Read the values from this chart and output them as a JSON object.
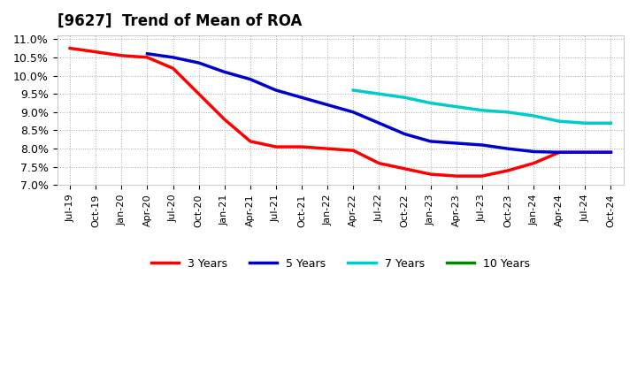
{
  "title": "[9627]  Trend of Mean of ROA",
  "background_color": "#ffffff",
  "plot_bg_color": "#ffffff",
  "grid_color": "#aaaaaa",
  "ylim": [
    0.07,
    0.111
  ],
  "yticks": [
    0.07,
    0.075,
    0.08,
    0.085,
    0.09,
    0.095,
    0.1,
    0.105,
    0.11
  ],
  "ytick_labels": [
    "7.0%",
    "7.5%",
    "8.0%",
    "8.5%",
    "9.0%",
    "9.5%",
    "10.0%",
    "10.5%",
    "11.0%"
  ],
  "xtick_labels": [
    "Jul-19",
    "Oct-19",
    "Jan-20",
    "Apr-20",
    "Jul-20",
    "Oct-20",
    "Jan-21",
    "Apr-21",
    "Jul-21",
    "Oct-21",
    "Jan-22",
    "Apr-22",
    "Jul-22",
    "Oct-22",
    "Jan-23",
    "Apr-23",
    "Jul-23",
    "Oct-23",
    "Jan-24",
    "Apr-24",
    "Jul-24",
    "Oct-24"
  ],
  "series": [
    {
      "label": "3 Years",
      "color": "#ff0000",
      "x": [
        "Jul-19",
        "Oct-19",
        "Jan-20",
        "Apr-20",
        "Jul-20",
        "Oct-20",
        "Jan-21",
        "Apr-21",
        "Jul-21",
        "Oct-21",
        "Jan-22",
        "Apr-22",
        "Jul-22",
        "Oct-22",
        "Jan-23",
        "Apr-23",
        "Jul-23",
        "Oct-23",
        "Jan-24",
        "Apr-24",
        "Jul-24",
        "Oct-24"
      ],
      "y": [
        0.1075,
        0.1065,
        0.1055,
        0.105,
        0.102,
        0.095,
        0.088,
        0.082,
        0.0805,
        0.0805,
        0.08,
        0.0795,
        0.076,
        0.0745,
        0.073,
        0.0725,
        0.0725,
        0.074,
        0.076,
        0.079,
        0.079,
        0.079
      ]
    },
    {
      "label": "5 Years",
      "color": "#0000cc",
      "x": [
        "Apr-20",
        "Jul-20",
        "Oct-20",
        "Jan-21",
        "Apr-21",
        "Jul-21",
        "Oct-21",
        "Jan-22",
        "Apr-22",
        "Jul-22",
        "Oct-22",
        "Jan-23",
        "Apr-23",
        "Jul-23",
        "Oct-23",
        "Jan-24",
        "Apr-24",
        "Jul-24",
        "Oct-24"
      ],
      "y": [
        0.106,
        0.105,
        0.1035,
        0.101,
        0.099,
        0.096,
        0.094,
        0.092,
        0.09,
        0.087,
        0.084,
        0.082,
        0.0815,
        0.081,
        0.08,
        0.0792,
        0.079,
        0.079,
        0.079
      ]
    },
    {
      "label": "7 Years",
      "color": "#00cccc",
      "x": [
        "Apr-22",
        "Jul-22",
        "Oct-22",
        "Jan-23",
        "Apr-23",
        "Jul-23",
        "Oct-23",
        "Jan-24",
        "Apr-24",
        "Jul-24",
        "Oct-24"
      ],
      "y": [
        0.096,
        0.095,
        0.094,
        0.0925,
        0.0915,
        0.0905,
        0.09,
        0.089,
        0.0875,
        0.087,
        0.087
      ]
    },
    {
      "label": "10 Years",
      "color": "#008800",
      "x": [],
      "y": []
    }
  ],
  "legend_position": "lower center",
  "line_width": 2.5
}
